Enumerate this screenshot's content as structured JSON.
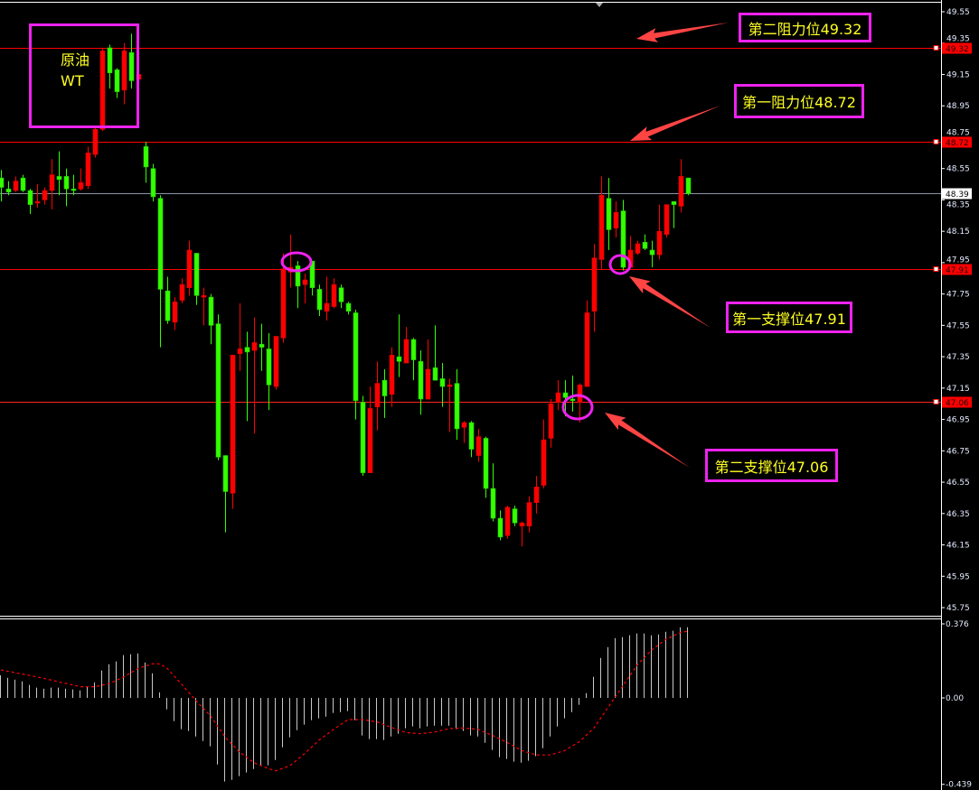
{
  "chart_data": {
    "type": "candlestick",
    "price_axis": {
      "ylim": [
        45.75,
        49.55
      ],
      "ticks": [
        "49.55",
        "49.35",
        "49.15",
        "48.95",
        "48.75",
        "48.55",
        "48.35",
        "48.15",
        "47.95",
        "47.75",
        "47.55",
        "47.35",
        "47.15",
        "46.95",
        "46.75",
        "46.55",
        "46.35",
        "46.15",
        "45.95",
        "45.75"
      ]
    },
    "candle_columns": [
      "open",
      "high",
      "low",
      "close"
    ],
    "candles": [
      [
        48.49,
        48.54,
        48.34,
        48.43
      ],
      [
        48.42,
        48.47,
        48.38,
        48.4
      ],
      [
        48.41,
        48.5,
        48.4,
        48.47
      ],
      [
        48.49,
        48.51,
        48.4,
        48.41
      ],
      [
        48.41,
        48.42,
        48.26,
        48.32
      ],
      [
        48.33,
        48.45,
        48.3,
        48.34
      ],
      [
        48.35,
        48.43,
        48.32,
        48.41
      ],
      [
        48.41,
        48.61,
        48.29,
        48.51
      ],
      [
        48.5,
        48.66,
        48.38,
        48.48
      ],
      [
        48.5,
        48.55,
        48.31,
        48.42
      ],
      [
        48.42,
        48.51,
        48.38,
        48.41
      ],
      [
        48.42,
        48.55,
        48.41,
        48.46
      ],
      [
        48.44,
        48.69,
        48.42,
        48.65
      ],
      [
        48.64,
        48.81,
        48.62,
        48.8
      ],
      [
        48.8,
        49.32,
        48.79,
        49.3
      ],
      [
        49.32,
        49.34,
        49.06,
        49.16
      ],
      [
        49.18,
        49.19,
        49.0,
        49.04
      ],
      [
        49.05,
        49.35,
        48.96,
        49.3
      ],
      [
        49.29,
        49.41,
        49.06,
        49.11
      ],
      [
        49.12,
        49.15,
        49.12,
        49.15
      ],
      [
        48.69,
        48.72,
        48.46,
        48.56
      ],
      [
        48.55,
        48.58,
        48.34,
        48.37
      ],
      [
        48.36,
        48.38,
        47.41,
        47.78
      ],
      [
        47.77,
        47.86,
        47.56,
        47.58
      ],
      [
        47.57,
        47.73,
        47.52,
        47.7
      ],
      [
        47.71,
        47.85,
        47.69,
        47.81
      ],
      [
        47.79,
        48.09,
        47.74,
        48.03
      ],
      [
        48.01,
        48.01,
        47.68,
        47.74
      ],
      [
        47.73,
        47.79,
        47.55,
        47.74
      ],
      [
        47.73,
        47.75,
        47.43,
        47.55
      ],
      [
        47.56,
        47.62,
        46.69,
        46.71
      ],
      [
        46.72,
        46.72,
        46.23,
        46.49
      ],
      [
        46.48,
        47.36,
        46.38,
        47.36
      ],
      [
        47.37,
        47.69,
        47.26,
        47.4
      ],
      [
        47.41,
        47.51,
        46.94,
        47.38
      ],
      [
        47.39,
        47.6,
        46.86,
        47.44
      ],
      [
        47.43,
        47.56,
        47.26,
        47.41
      ],
      [
        47.4,
        47.5,
        47.01,
        47.17
      ],
      [
        47.16,
        47.48,
        47.14,
        47.48
      ],
      [
        47.47,
        48.01,
        47.44,
        47.91
      ],
      [
        47.89,
        48.13,
        47.79,
        47.92
      ],
      [
        47.93,
        47.96,
        47.66,
        47.8
      ],
      [
        47.81,
        47.88,
        47.69,
        47.84
      ],
      [
        47.96,
        47.96,
        47.74,
        47.79
      ],
      [
        47.78,
        47.81,
        47.61,
        47.65
      ],
      [
        47.64,
        47.86,
        47.58,
        47.69
      ],
      [
        47.67,
        47.85,
        47.66,
        47.81
      ],
      [
        47.79,
        47.81,
        47.66,
        47.7
      ],
      [
        47.69,
        47.7,
        47.62,
        47.64
      ],
      [
        47.63,
        47.65,
        46.95,
        47.07
      ],
      [
        47.06,
        47.1,
        46.59,
        46.61
      ],
      [
        46.61,
        47.16,
        46.61,
        47.02
      ],
      [
        47.03,
        47.32,
        46.88,
        47.18
      ],
      [
        47.2,
        47.27,
        46.96,
        47.1
      ],
      [
        47.11,
        47.41,
        47.03,
        47.36
      ],
      [
        47.35,
        47.62,
        47.22,
        47.32
      ],
      [
        47.31,
        47.54,
        47.31,
        47.46
      ],
      [
        47.46,
        47.47,
        47.2,
        47.33
      ],
      [
        47.32,
        47.39,
        46.98,
        47.08
      ],
      [
        47.08,
        47.46,
        47.08,
        47.27
      ],
      [
        47.28,
        47.55,
        47.2,
        47.2
      ],
      [
        47.21,
        47.31,
        47.03,
        47.16
      ],
      [
        47.16,
        47.21,
        46.87,
        47.17
      ],
      [
        47.18,
        47.27,
        46.82,
        46.89
      ],
      [
        46.9,
        46.94,
        46.8,
        46.93
      ],
      [
        46.93,
        46.94,
        46.71,
        46.76
      ],
      [
        46.72,
        46.89,
        46.68,
        46.84
      ],
      [
        46.83,
        46.84,
        46.45,
        46.51
      ],
      [
        46.51,
        46.67,
        46.3,
        46.32
      ],
      [
        46.32,
        46.37,
        46.18,
        46.2
      ],
      [
        46.21,
        46.4,
        46.19,
        46.39
      ],
      [
        46.38,
        46.4,
        46.27,
        46.29
      ],
      [
        46.27,
        46.3,
        46.14,
        46.29
      ],
      [
        46.27,
        46.46,
        46.23,
        46.42
      ],
      [
        46.42,
        46.59,
        46.35,
        46.52
      ],
      [
        46.53,
        46.95,
        46.51,
        46.82
      ],
      [
        46.83,
        47.08,
        46.77,
        47.05
      ],
      [
        47.06,
        47.2,
        47.01,
        47.12
      ],
      [
        47.12,
        47.2,
        46.97,
        47.09
      ],
      [
        47.08,
        47.23,
        47.0,
        47.07
      ],
      [
        47.06,
        47.18,
        46.93,
        47.17
      ],
      [
        47.16,
        47.71,
        47.16,
        47.63
      ],
      [
        47.64,
        48.07,
        47.51,
        47.98
      ],
      [
        47.97,
        48.5,
        47.91,
        48.38
      ],
      [
        48.36,
        48.49,
        48.03,
        48.16
      ],
      [
        48.17,
        48.34,
        48.11,
        48.27
      ],
      [
        48.28,
        48.35,
        47.9,
        47.92
      ],
      [
        47.92,
        48.12,
        47.92,
        48.03
      ],
      [
        48.01,
        48.09,
        48.0,
        48.07
      ],
      [
        48.08,
        48.13,
        48.03,
        48.04
      ],
      [
        48.03,
        48.09,
        47.92,
        48.0
      ],
      [
        48.0,
        48.32,
        47.97,
        48.15
      ],
      [
        48.13,
        48.32,
        48.11,
        48.32
      ],
      [
        48.34,
        48.34,
        48.17,
        48.32
      ],
      [
        48.31,
        48.61,
        48.27,
        48.5
      ],
      [
        48.49,
        48.49,
        48.38,
        48.39
      ]
    ],
    "up_color": "#ff0000",
    "down_color": "#33ff00",
    "levels": [
      {
        "price": 49.32,
        "label": "49.32",
        "color": "#ff0000"
      },
      {
        "price": 48.72,
        "label": "48.72",
        "color": "#ff0000"
      },
      {
        "price": 47.91,
        "label": "47.91",
        "color": "#ff0000"
      },
      {
        "price": 47.06,
        "label": "47.06",
        "color": "#ff2020"
      }
    ],
    "current_price": {
      "price": 48.39,
      "label": "48.39",
      "color": "#8a94a8"
    },
    "macd": {
      "ticks": [
        {
          "value": 0.376,
          "label": "0.376"
        },
        {
          "value": 0,
          "label": "0.00"
        },
        {
          "value": -0.439,
          "label": "-0.439"
        }
      ],
      "histogram": [
        0.115,
        0.102,
        0.093,
        0.084,
        0.066,
        0.052,
        0.047,
        0.052,
        0.052,
        0.047,
        0.043,
        0.038,
        0.057,
        0.079,
        0.139,
        0.171,
        0.185,
        0.217,
        0.222,
        0.226,
        0.18,
        0.125,
        0.028,
        -0.058,
        -0.118,
        -0.159,
        -0.168,
        -0.196,
        -0.219,
        -0.246,
        -0.338,
        -0.425,
        -0.416,
        -0.397,
        -0.379,
        -0.361,
        -0.342,
        -0.342,
        -0.315,
        -0.251,
        -0.2,
        -0.164,
        -0.136,
        -0.113,
        -0.104,
        -0.095,
        -0.076,
        -0.072,
        -0.067,
        -0.113,
        -0.191,
        -0.209,
        -0.209,
        -0.214,
        -0.196,
        -0.182,
        -0.154,
        -0.145,
        -0.154,
        -0.145,
        -0.141,
        -0.141,
        -0.141,
        -0.159,
        -0.168,
        -0.191,
        -0.196,
        -0.228,
        -0.264,
        -0.301,
        -0.31,
        -0.324,
        -0.329,
        -0.319,
        -0.296,
        -0.255,
        -0.196,
        -0.145,
        -0.104,
        -0.072,
        -0.035,
        0.024,
        0.107,
        0.203,
        0.258,
        0.304,
        0.309,
        0.318,
        0.327,
        0.327,
        0.318,
        0.322,
        0.336,
        0.341,
        0.359,
        0.359
      ],
      "signal": [
        [
          0,
          0.142
        ],
        [
          5,
          0.107
        ],
        [
          11,
          0.057
        ],
        [
          13,
          0.057
        ],
        [
          15,
          0.073
        ],
        [
          17,
          0.107
        ],
        [
          19,
          0.15
        ],
        [
          21,
          0.174
        ],
        [
          22,
          0.173
        ],
        [
          23,
          0.15
        ],
        [
          25,
          0.069
        ],
        [
          27,
          -0.015
        ],
        [
          29,
          -0.092
        ],
        [
          31,
          -0.199
        ],
        [
          33,
          -0.275
        ],
        [
          35,
          -0.329
        ],
        [
          37,
          -0.359
        ],
        [
          38,
          -0.37
        ],
        [
          40,
          -0.344
        ],
        [
          42,
          -0.283
        ],
        [
          44,
          -0.214
        ],
        [
          46,
          -0.16
        ],
        [
          48,
          -0.11
        ],
        [
          50,
          -0.11
        ],
        [
          52,
          -0.122
        ],
        [
          54,
          -0.15
        ],
        [
          56,
          -0.176
        ],
        [
          58,
          -0.182
        ],
        [
          60,
          -0.173
        ],
        [
          62,
          -0.156
        ],
        [
          64,
          -0.153
        ],
        [
          66,
          -0.16
        ],
        [
          68,
          -0.191
        ],
        [
          70,
          -0.226
        ],
        [
          72,
          -0.267
        ],
        [
          74,
          -0.29
        ],
        [
          76,
          -0.29
        ],
        [
          78,
          -0.267
        ],
        [
          80,
          -0.222
        ],
        [
          82,
          -0.153
        ],
        [
          84,
          -0.046
        ],
        [
          86,
          0.061
        ],
        [
          88,
          0.168
        ],
        [
          90,
          0.244
        ],
        [
          92,
          0.298
        ],
        [
          94,
          0.333
        ],
        [
          95,
          0.339
        ]
      ],
      "histogram_color": "#c8c8c8",
      "signal_color": "#ff0000"
    }
  },
  "annotations": {
    "instrument_line1": "原油",
    "instrument_line2": "WT",
    "resistance2": "第二阻力位49.32",
    "resistance1": "第一阻力位48.72",
    "support1": "第一支撑位47.91",
    "support2": "第二支撑位47.06",
    "box_color": "#ee22ee",
    "text_color": "#ffff22",
    "arrow_color": "#ff4444"
  }
}
